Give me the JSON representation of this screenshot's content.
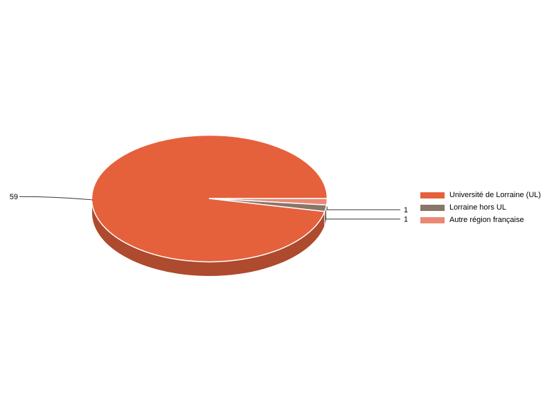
{
  "page": {
    "background": "#ffffff"
  },
  "chart_data": {
    "type": "pie",
    "style": "pie-3d",
    "title": "",
    "series": [
      {
        "name": "Université de Lorraine (UL)",
        "value": 59,
        "data_label": "59",
        "color": "#E5613C"
      },
      {
        "name": "Lorraine hors UL",
        "value": 1,
        "data_label": "1",
        "color": "#8A7567"
      },
      {
        "name": "Autre région française",
        "value": 1,
        "data_label": "1",
        "color": "#E98875"
      }
    ],
    "legend_position": "right",
    "data_label_color": "#000000",
    "leader_line_color": "#333333",
    "slice_border_color": "#ffffff",
    "background": "#ffffff"
  }
}
